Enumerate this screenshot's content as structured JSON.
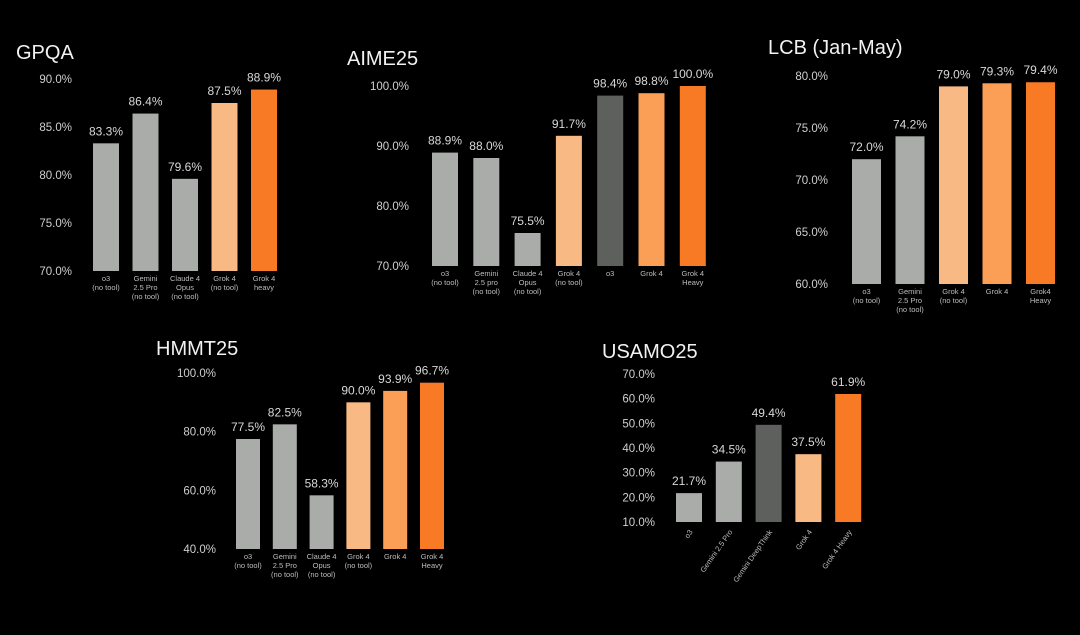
{
  "colors": {
    "gray": "#a9aca8",
    "dark_gray": "#5e605d",
    "light_orange": "#f9b985",
    "mid_orange": "#fb9f56",
    "orange": "#f87a25",
    "background": "#000000"
  },
  "chart_data": [
    {
      "type": "bar",
      "title": "GPQA",
      "categories": [
        [
          "o3",
          "(no tool)"
        ],
        [
          "Gemini",
          "2.5 Pro",
          "(no tool)"
        ],
        [
          "Claude 4",
          "Opus",
          "(no tool)"
        ],
        [
          "Grok 4",
          "(no tool)"
        ],
        [
          "Grok 4",
          "heavy"
        ]
      ],
      "values": [
        83.3,
        86.4,
        79.6,
        87.5,
        88.9
      ],
      "value_labels": [
        "83.3%",
        "86.4%",
        "79.6%",
        "87.5%",
        "88.9%"
      ],
      "bar_colors": [
        "gray",
        "gray",
        "gray",
        "light_orange",
        "orange"
      ],
      "ylim": [
        70,
        90
      ],
      "yticks": [
        70,
        75,
        80,
        85,
        90
      ],
      "ytick_labels": [
        "70.0%",
        "75.0%",
        "80.0%",
        "85.0%",
        "90.0%"
      ],
      "rotated_labels": false
    },
    {
      "type": "bar",
      "title": "AIME25",
      "categories": [
        [
          "o3",
          "(no tool)"
        ],
        [
          "Gemini",
          "2.5 pro",
          "(no tool)"
        ],
        [
          "Claude 4",
          "Opus",
          "(no tool)"
        ],
        [
          "Grok 4",
          "(no tool)"
        ],
        [
          "o3"
        ],
        [
          "Grok 4"
        ],
        [
          "Grok 4",
          "Heavy"
        ]
      ],
      "values": [
        88.9,
        88.0,
        75.5,
        91.7,
        98.4,
        98.8,
        100.0
      ],
      "value_labels": [
        "88.9%",
        "88.0%",
        "75.5%",
        "91.7%",
        "98.4%",
        "98.8%",
        "100.0%"
      ],
      "bar_colors": [
        "gray",
        "gray",
        "gray",
        "light_orange",
        "dark_gray",
        "mid_orange",
        "orange"
      ],
      "ylim": [
        70,
        100
      ],
      "yticks": [
        70,
        80,
        90,
        100
      ],
      "ytick_labels": [
        "70.0%",
        "80.0%",
        "90.0%",
        "100.0%"
      ],
      "rotated_labels": false
    },
    {
      "type": "bar",
      "title": "LCB (Jan-May)",
      "categories": [
        [
          "o3",
          "(no tool)"
        ],
        [
          "Gemini",
          "2.5 Pro",
          "(no tool)"
        ],
        [
          "Grok 4",
          "(no tool)"
        ],
        [
          "Grok 4"
        ],
        [
          "Grok4",
          "Heavy"
        ]
      ],
      "values": [
        72.0,
        74.2,
        79.0,
        79.3,
        79.4
      ],
      "value_labels": [
        "72.0%",
        "74.2%",
        "79.0%",
        "79.3%",
        "79.4%"
      ],
      "bar_colors": [
        "gray",
        "gray",
        "light_orange",
        "mid_orange",
        "orange"
      ],
      "ylim": [
        60,
        80
      ],
      "yticks": [
        60,
        65,
        70,
        75,
        80
      ],
      "ytick_labels": [
        "60.0%",
        "65.0%",
        "70.0%",
        "75.0%",
        "80.0%"
      ],
      "rotated_labels": false
    },
    {
      "type": "bar",
      "title": "HMMT25",
      "categories": [
        [
          "o3",
          "(no tool)"
        ],
        [
          "Gemini",
          "2.5 Pro",
          "(no tool)"
        ],
        [
          "Claude 4",
          "Opus",
          "(no tool)"
        ],
        [
          "Grok 4",
          "(no tool)"
        ],
        [
          "Grok 4"
        ],
        [
          "Grok 4",
          "Heavy"
        ]
      ],
      "values": [
        77.5,
        82.5,
        58.3,
        90.0,
        93.9,
        96.7
      ],
      "value_labels": [
        "77.5%",
        "82.5%",
        "58.3%",
        "90.0%",
        "93.9%",
        "96.7%"
      ],
      "bar_colors": [
        "gray",
        "gray",
        "gray",
        "light_orange",
        "mid_orange",
        "orange"
      ],
      "ylim": [
        40,
        100
      ],
      "yticks": [
        40,
        60,
        80,
        100
      ],
      "ytick_labels": [
        "40.0%",
        "60.0%",
        "80.0%",
        "100.0%"
      ],
      "rotated_labels": false
    },
    {
      "type": "bar",
      "title": "USAMO25",
      "categories": [
        [
          "o3"
        ],
        [
          "Gemini 2.5 Pro"
        ],
        [
          "Gemini DeepThink"
        ],
        [
          "Grok 4"
        ],
        [
          "Grok 4 Heavy"
        ]
      ],
      "values": [
        21.7,
        34.5,
        49.4,
        37.5,
        61.9
      ],
      "value_labels": [
        "21.7%",
        "34.5%",
        "49.4%",
        "37.5%",
        "61.9%"
      ],
      "bar_colors": [
        "gray",
        "gray",
        "dark_gray",
        "light_orange",
        "orange"
      ],
      "ylim": [
        10,
        70
      ],
      "yticks": [
        10,
        20,
        30,
        40,
        50,
        60,
        70
      ],
      "ytick_labels": [
        "10.0%",
        "20.0%",
        "30.0%",
        "40.0%",
        "50.0%",
        "60.0%",
        "70.0%"
      ],
      "rotated_labels": true
    }
  ]
}
